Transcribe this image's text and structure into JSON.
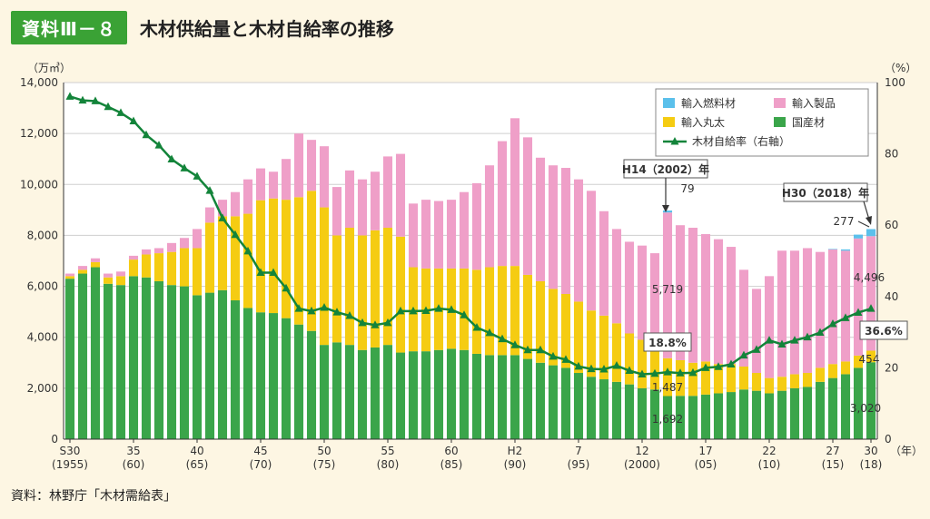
{
  "header": {
    "badge": "資料Ⅲ－８",
    "title": "木材供給量と木材自給率の推移"
  },
  "source": "資料：林野庁「木材需給表」",
  "chart_data": {
    "type": "bar",
    "title": "木材供給量と木材自給率の推移",
    "ylabel_left": "（万㎥）",
    "ylabel_right": "（%）",
    "ylim_left": [
      0,
      14000
    ],
    "ylim_right": [
      0,
      100
    ],
    "left_ticks": [
      "0",
      "2,000",
      "4,000",
      "6,000",
      "8,000",
      "10,000",
      "12,000",
      "14,000"
    ],
    "right_ticks": [
      "0",
      "20",
      "40",
      "60",
      "80",
      "100"
    ],
    "x_unit": "（年）",
    "x_ticks": [
      {
        "i": 0,
        "top": "S30",
        "bottom": "(1955)"
      },
      {
        "i": 5,
        "top": "35",
        "bottom": "(60)"
      },
      {
        "i": 10,
        "top": "40",
        "bottom": "(65)"
      },
      {
        "i": 15,
        "top": "45",
        "bottom": "(70)"
      },
      {
        "i": 20,
        "top": "50",
        "bottom": "(75)"
      },
      {
        "i": 25,
        "top": "55",
        "bottom": "(80)"
      },
      {
        "i": 30,
        "top": "60",
        "bottom": "(85)"
      },
      {
        "i": 35,
        "top": "H2",
        "bottom": "(90)"
      },
      {
        "i": 40,
        "top": "7",
        "bottom": "(95)"
      },
      {
        "i": 45,
        "top": "12",
        "bottom": "(2000)"
      },
      {
        "i": 50,
        "top": "17",
        "bottom": "(05)"
      },
      {
        "i": 55,
        "top": "22",
        "bottom": "(10)"
      },
      {
        "i": 60,
        "top": "27",
        "bottom": "(15)"
      },
      {
        "i": 63,
        "top": "30",
        "bottom": "(18)"
      }
    ],
    "years": [
      1955,
      1956,
      1957,
      1958,
      1959,
      1960,
      1961,
      1962,
      1963,
      1964,
      1965,
      1966,
      1967,
      1968,
      1969,
      1970,
      1971,
      1972,
      1973,
      1974,
      1975,
      1976,
      1977,
      1978,
      1979,
      1980,
      1981,
      1982,
      1983,
      1984,
      1985,
      1986,
      1987,
      1988,
      1989,
      1990,
      1991,
      1992,
      1993,
      1994,
      1995,
      1996,
      1997,
      1998,
      1999,
      2000,
      2001,
      2002,
      2003,
      2004,
      2005,
      2006,
      2007,
      2008,
      2009,
      2010,
      2011,
      2012,
      2013,
      2014,
      2015,
      2016,
      2017,
      2018
    ],
    "series": [
      {
        "name": "国産材",
        "color": "#3aa54a",
        "values": [
          6300,
          6500,
          6750,
          6100,
          6050,
          6400,
          6350,
          6200,
          6050,
          6000,
          5650,
          5750,
          5850,
          5450,
          5150,
          4980,
          4950,
          4750,
          4500,
          4250,
          3700,
          3800,
          3700,
          3500,
          3600,
          3700,
          3400,
          3450,
          3450,
          3500,
          3550,
          3500,
          3350,
          3300,
          3300,
          3300,
          3150,
          3000,
          2900,
          2800,
          2600,
          2450,
          2350,
          2250,
          2150,
          2000,
          1950,
          1692,
          1700,
          1700,
          1750,
          1800,
          1850,
          1950,
          1900,
          1800,
          1900,
          2000,
          2050,
          2250,
          2400,
          2550,
          2800,
          3020
        ]
      },
      {
        "name": "輸入丸太",
        "color": "#f5cc12",
        "values": [
          100,
          150,
          200,
          250,
          350,
          650,
          900,
          1100,
          1300,
          1500,
          1850,
          2750,
          2900,
          3300,
          3700,
          4400,
          4500,
          4650,
          5000,
          5500,
          5400,
          4200,
          4600,
          4500,
          4600,
          4600,
          4550,
          3300,
          3250,
          3200,
          3150,
          3200,
          3300,
          3450,
          3500,
          3500,
          3300,
          3200,
          3000,
          2900,
          2800,
          2600,
          2500,
          2300,
          2000,
          1900,
          1800,
          1487,
          1400,
          1300,
          1300,
          1150,
          1100,
          900,
          700,
          600,
          550,
          550,
          550,
          550,
          550,
          500,
          480,
          454
        ]
      },
      {
        "name": "輸入製品",
        "color": "#ef9fc8",
        "values": [
          100,
          150,
          150,
          150,
          180,
          150,
          200,
          200,
          350,
          400,
          750,
          600,
          650,
          950,
          1350,
          1250,
          1050,
          1600,
          2500,
          2000,
          2400,
          1900,
          2250,
          2200,
          2300,
          2800,
          3250,
          2500,
          2700,
          2650,
          2700,
          3000,
          3400,
          4000,
          4900,
          5800,
          5400,
          4850,
          4850,
          4950,
          4800,
          4700,
          4100,
          3700,
          3600,
          3700,
          3550,
          5719,
          5300,
          5300,
          5000,
          4900,
          4600,
          3800,
          3300,
          4000,
          4950,
          4850,
          4900,
          4550,
          4500,
          4350,
          4600,
          4496
        ]
      },
      {
        "name": "輸入燃料材",
        "color": "#5bc0eb",
        "values": [
          0,
          0,
          0,
          0,
          0,
          0,
          0,
          0,
          0,
          0,
          0,
          0,
          0,
          0,
          0,
          0,
          0,
          0,
          0,
          0,
          0,
          0,
          0,
          0,
          0,
          0,
          0,
          0,
          0,
          0,
          0,
          0,
          0,
          0,
          0,
          0,
          0,
          0,
          0,
          0,
          0,
          0,
          0,
          0,
          0,
          0,
          0,
          79,
          0,
          0,
          0,
          0,
          0,
          0,
          0,
          0,
          0,
          0,
          0,
          0,
          20,
          50,
          150,
          277
        ]
      },
      {
        "name": "木材自給率（右軸）",
        "color": "#13843a",
        "type": "line",
        "axis": "right",
        "values": [
          96.1,
          95.0,
          94.8,
          93.2,
          91.5,
          89.2,
          85.3,
          82.4,
          78.5,
          76.0,
          73.7,
          69.7,
          62.0,
          57.3,
          52.7,
          46.7,
          46.7,
          42.3,
          36.6,
          35.9,
          36.9,
          35.6,
          34.6,
          32.6,
          32.0,
          32.6,
          35.9,
          35.9,
          36.0,
          36.6,
          36.3,
          34.8,
          31.3,
          29.8,
          28.1,
          26.4,
          25.0,
          25.0,
          23.2,
          22.3,
          20.4,
          19.7,
          19.6,
          20.6,
          19.2,
          18.2,
          18.4,
          18.8,
          18.5,
          18.6,
          20.0,
          20.3,
          21.0,
          23.5,
          25.1,
          27.7,
          26.6,
          27.7,
          28.6,
          29.9,
          32.3,
          34.0,
          35.5,
          36.6
        ]
      }
    ],
    "legend": [
      "輸入燃料材",
      "輸入製品",
      "輸入丸太",
      "国産材",
      "木材自給率（右軸）"
    ],
    "annotations": [
      {
        "text": "H14（2002）年",
        "boxed": true
      },
      {
        "text": "79"
      },
      {
        "text": "5,719"
      },
      {
        "text": "18.8%",
        "boxed": true
      },
      {
        "text": "1,487"
      },
      {
        "text": "1,692"
      },
      {
        "text": "H30（2018）年",
        "boxed": true
      },
      {
        "text": "277"
      },
      {
        "text": "4,496"
      },
      {
        "text": "36.6%",
        "boxed": true
      },
      {
        "text": "454"
      },
      {
        "text": "3,020"
      }
    ]
  }
}
